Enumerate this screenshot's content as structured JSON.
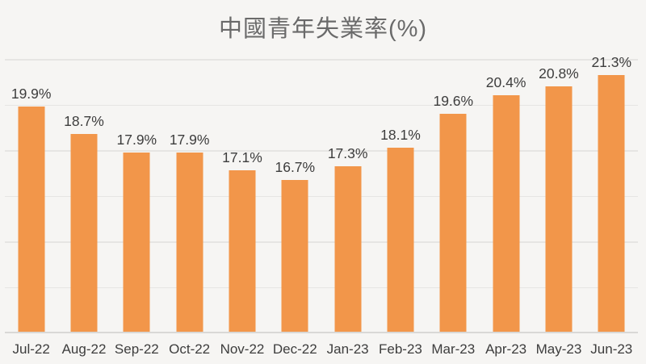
{
  "title": "中國青年失業率(%)",
  "chart_data": {
    "type": "bar",
    "title": "中國青年失業率(%)",
    "categories": [
      "Jul-22",
      "Aug-22",
      "Sep-22",
      "Oct-22",
      "Nov-22",
      "Dec-22",
      "Jan-23",
      "Feb-23",
      "Mar-23",
      "Apr-23",
      "May-23",
      "Jun-23"
    ],
    "values": [
      19.9,
      18.7,
      17.9,
      17.9,
      17.1,
      16.7,
      17.3,
      18.1,
      19.6,
      20.4,
      20.8,
      21.3
    ],
    "value_labels": [
      "19.9%",
      "18.7%",
      "17.9%",
      "17.9%",
      "17.1%",
      "16.7%",
      "17.3%",
      "18.1%",
      "19.6%",
      "20.4%",
      "20.8%",
      "21.3%"
    ],
    "xlabel": "",
    "ylabel": "",
    "ylim": [
      10,
      22
    ],
    "grid_step": 2,
    "grid": true,
    "legend": false,
    "colors": {
      "bar": "#F2964A",
      "background": "#F6F5F3",
      "gridline": "#E6E5E3",
      "axis_line": "#D9D8D6",
      "label": "#3D3D3D",
      "title": "#6A6A6A"
    }
  }
}
